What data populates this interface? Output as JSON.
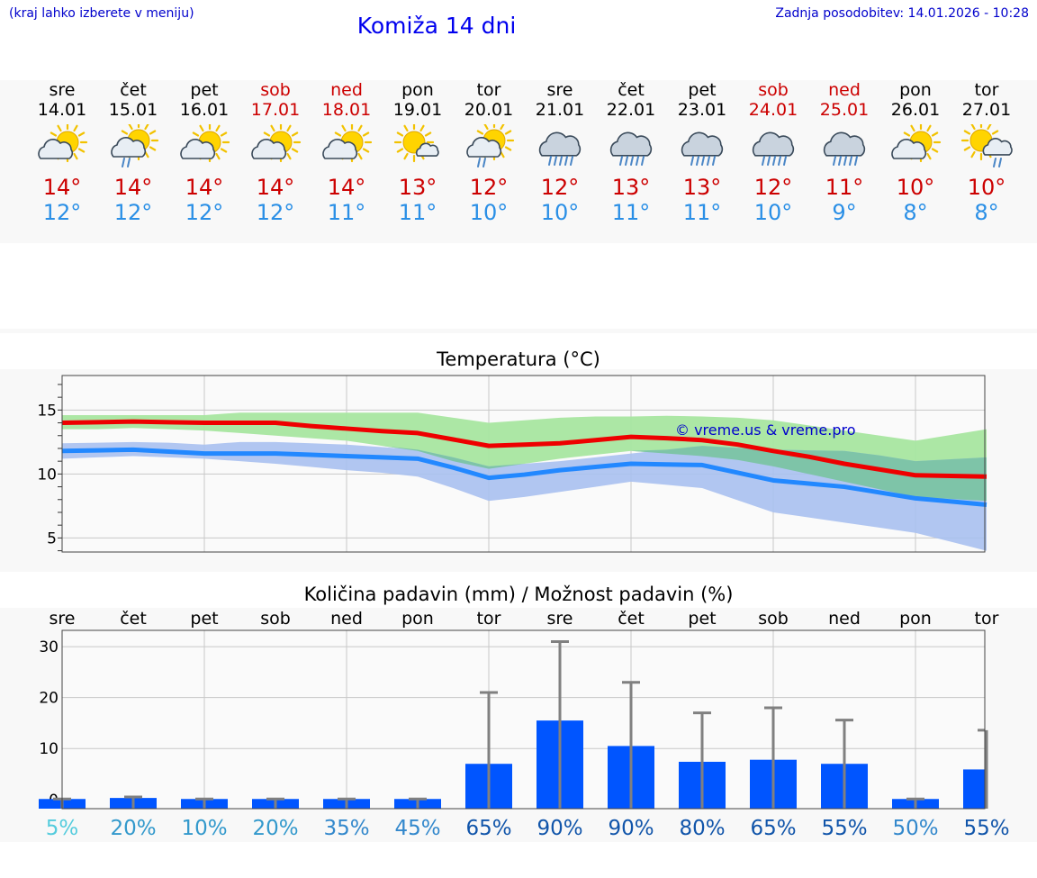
{
  "header": {
    "menu_hint": "(kraj lahko izberete v meniju)",
    "title": "Komiža 14 dni",
    "updated": "Zadnja posodobitev: 14.01.2026 - 10:28"
  },
  "days": [
    {
      "name": "sre",
      "date": "14.01",
      "weekend": false,
      "icon": "sun-cloud-icon",
      "tmax": "14°",
      "tmin": "12°"
    },
    {
      "name": "čet",
      "date": "15.01",
      "weekend": false,
      "icon": "sun-cloud-rain-icon",
      "tmax": "14°",
      "tmin": "12°"
    },
    {
      "name": "pet",
      "date": "16.01",
      "weekend": false,
      "icon": "sun-cloud-icon",
      "tmax": "14°",
      "tmin": "12°"
    },
    {
      "name": "sob",
      "date": "17.01",
      "weekend": true,
      "icon": "sun-cloud-icon",
      "tmax": "14°",
      "tmin": "12°"
    },
    {
      "name": "ned",
      "date": "18.01",
      "weekend": true,
      "icon": "sun-cloud-icon",
      "tmax": "14°",
      "tmin": "11°"
    },
    {
      "name": "pon",
      "date": "19.01",
      "weekend": false,
      "icon": "sun-small-cloud-icon",
      "tmax": "13°",
      "tmin": "11°"
    },
    {
      "name": "tor",
      "date": "20.01",
      "weekend": false,
      "icon": "sun-cloud-rain-icon",
      "tmax": "12°",
      "tmin": "10°"
    },
    {
      "name": "sre",
      "date": "21.01",
      "weekend": false,
      "icon": "cloud-heavy-rain-icon",
      "tmax": "12°",
      "tmin": "10°"
    },
    {
      "name": "čet",
      "date": "22.01",
      "weekend": false,
      "icon": "cloud-heavy-rain-icon",
      "tmax": "13°",
      "tmin": "11°"
    },
    {
      "name": "pet",
      "date": "23.01",
      "weekend": false,
      "icon": "cloud-heavy-rain-icon",
      "tmax": "13°",
      "tmin": "11°"
    },
    {
      "name": "sob",
      "date": "24.01",
      "weekend": true,
      "icon": "cloud-heavy-rain-icon",
      "tmax": "12°",
      "tmin": "10°"
    },
    {
      "name": "ned",
      "date": "25.01",
      "weekend": true,
      "icon": "cloud-heavy-rain-icon",
      "tmax": "11°",
      "tmin": "9°"
    },
    {
      "name": "pon",
      "date": "26.01",
      "weekend": false,
      "icon": "sun-cloud-icon",
      "tmax": "10°",
      "tmin": "8°"
    },
    {
      "name": "tor",
      "date": "27.01",
      "weekend": false,
      "icon": "sun-small-cloud-rain-icon",
      "tmax": "10°",
      "tmin": "8°"
    }
  ],
  "colors": {
    "max": "#ee0000",
    "min": "#2288ff",
    "green_band": "#a8e6a0",
    "blue_band": "#a8c0f0",
    "overlap": "#7ec4a8",
    "bar": "#0055ff",
    "whisker": "#808080",
    "weekend": "#cc0000"
  },
  "chart_data": [
    {
      "type": "line",
      "title": "Temperatura (°C)",
      "watermark": "© vreme.us & vreme.pro",
      "ylim": [
        3.9,
        17.7
      ],
      "yticks": [
        5,
        10,
        15
      ],
      "x": [
        0,
        0.5,
        1,
        1.5,
        2,
        2.5,
        3,
        3.5,
        4,
        4.5,
        5,
        5.5,
        6,
        6.5,
        7,
        7.5,
        8,
        8.5,
        9,
        9.5,
        10,
        10.5,
        11,
        11.5,
        12,
        12.5,
        13
      ],
      "series": [
        {
          "name": "max",
          "values": [
            14.0,
            14.05,
            14.1,
            14.05,
            14.0,
            14.0,
            14.0,
            13.75,
            13.55,
            13.35,
            13.2,
            12.7,
            12.2,
            12.3,
            12.4,
            12.65,
            12.9,
            12.8,
            12.65,
            12.3,
            11.8,
            11.35,
            10.8,
            10.35,
            9.9,
            9.85,
            9.8
          ]
        },
        {
          "name": "min",
          "values": [
            11.8,
            11.85,
            11.9,
            11.75,
            11.6,
            11.6,
            11.6,
            11.5,
            11.4,
            11.3,
            11.2,
            10.5,
            9.7,
            9.95,
            10.3,
            10.55,
            10.8,
            10.75,
            10.7,
            10.1,
            9.5,
            9.25,
            9.0,
            8.55,
            8.1,
            7.85,
            7.6
          ]
        },
        {
          "name": "max-band-upper",
          "values": [
            14.6,
            14.6,
            14.6,
            14.6,
            14.6,
            14.8,
            14.8,
            14.8,
            14.8,
            14.8,
            14.8,
            14.4,
            14.0,
            14.2,
            14.4,
            14.5,
            14.5,
            14.55,
            14.5,
            14.4,
            14.2,
            13.8,
            13.4,
            13.0,
            12.6,
            13.05,
            13.5
          ]
        },
        {
          "name": "max-band-lower",
          "values": [
            13.5,
            13.5,
            13.6,
            13.5,
            13.4,
            13.2,
            13.0,
            12.8,
            12.6,
            12.2,
            11.8,
            11.0,
            10.4,
            10.8,
            11.2,
            11.5,
            11.8,
            11.6,
            11.4,
            11.1,
            10.6,
            10.0,
            9.4,
            8.8,
            8.2,
            8.05,
            7.9
          ]
        },
        {
          "name": "min-band-upper",
          "values": [
            12.4,
            12.45,
            12.5,
            12.45,
            12.3,
            12.5,
            12.5,
            12.4,
            12.3,
            12.1,
            11.9,
            11.3,
            10.6,
            10.8,
            11.0,
            11.3,
            11.6,
            11.9,
            12.2,
            12.05,
            11.9,
            11.85,
            11.8,
            11.45,
            11.0,
            11.15,
            11.3
          ]
        },
        {
          "name": "min-band-lower",
          "values": [
            11.2,
            11.3,
            11.4,
            11.3,
            11.2,
            11.0,
            10.8,
            10.55,
            10.3,
            10.1,
            9.8,
            8.9,
            7.9,
            8.2,
            8.6,
            9.0,
            9.4,
            9.15,
            8.9,
            7.95,
            7.0,
            6.6,
            6.2,
            5.8,
            5.4,
            4.7,
            4.0
          ]
        }
      ]
    },
    {
      "type": "bar",
      "title": "Količina padavin (mm) / Možnost padavin (%)",
      "categories": [
        "sre",
        "čet",
        "pet",
        "sob",
        "ned",
        "pon",
        "tor",
        "sre",
        "čet",
        "pet",
        "sob",
        "ned",
        "pon",
        "tor"
      ],
      "ylim": [
        -1.8,
        33.2
      ],
      "yticks": [
        0,
        10,
        20,
        30
      ],
      "series": [
        {
          "name": "Količina padavin (mm)",
          "values": [
            0.1,
            0.3,
            0.1,
            0.1,
            0.1,
            0.1,
            7.0,
            15.5,
            10.5,
            7.4,
            7.8,
            7.0,
            0.1,
            5.9
          ]
        },
        {
          "name": "Maksimum (mm)",
          "values": [
            0.1,
            0.5,
            0.1,
            0.1,
            0.1,
            0.1,
            21.0,
            31.0,
            23.0,
            17.0,
            18.0,
            15.6,
            0.1,
            13.6
          ]
        }
      ],
      "chance": [
        "5%",
        "20%",
        "10%",
        "20%",
        "35%",
        "45%",
        "65%",
        "90%",
        "90%",
        "80%",
        "65%",
        "55%",
        "50%",
        "55%"
      ],
      "chance_colors": [
        "#55ccdd",
        "#3399cc",
        "#3399cc",
        "#3399cc",
        "#3388cc",
        "#3388cc",
        "#1155aa",
        "#1155aa",
        "#1155aa",
        "#1155aa",
        "#1155aa",
        "#1155aa",
        "#3388cc",
        "#1155aa"
      ]
    }
  ]
}
